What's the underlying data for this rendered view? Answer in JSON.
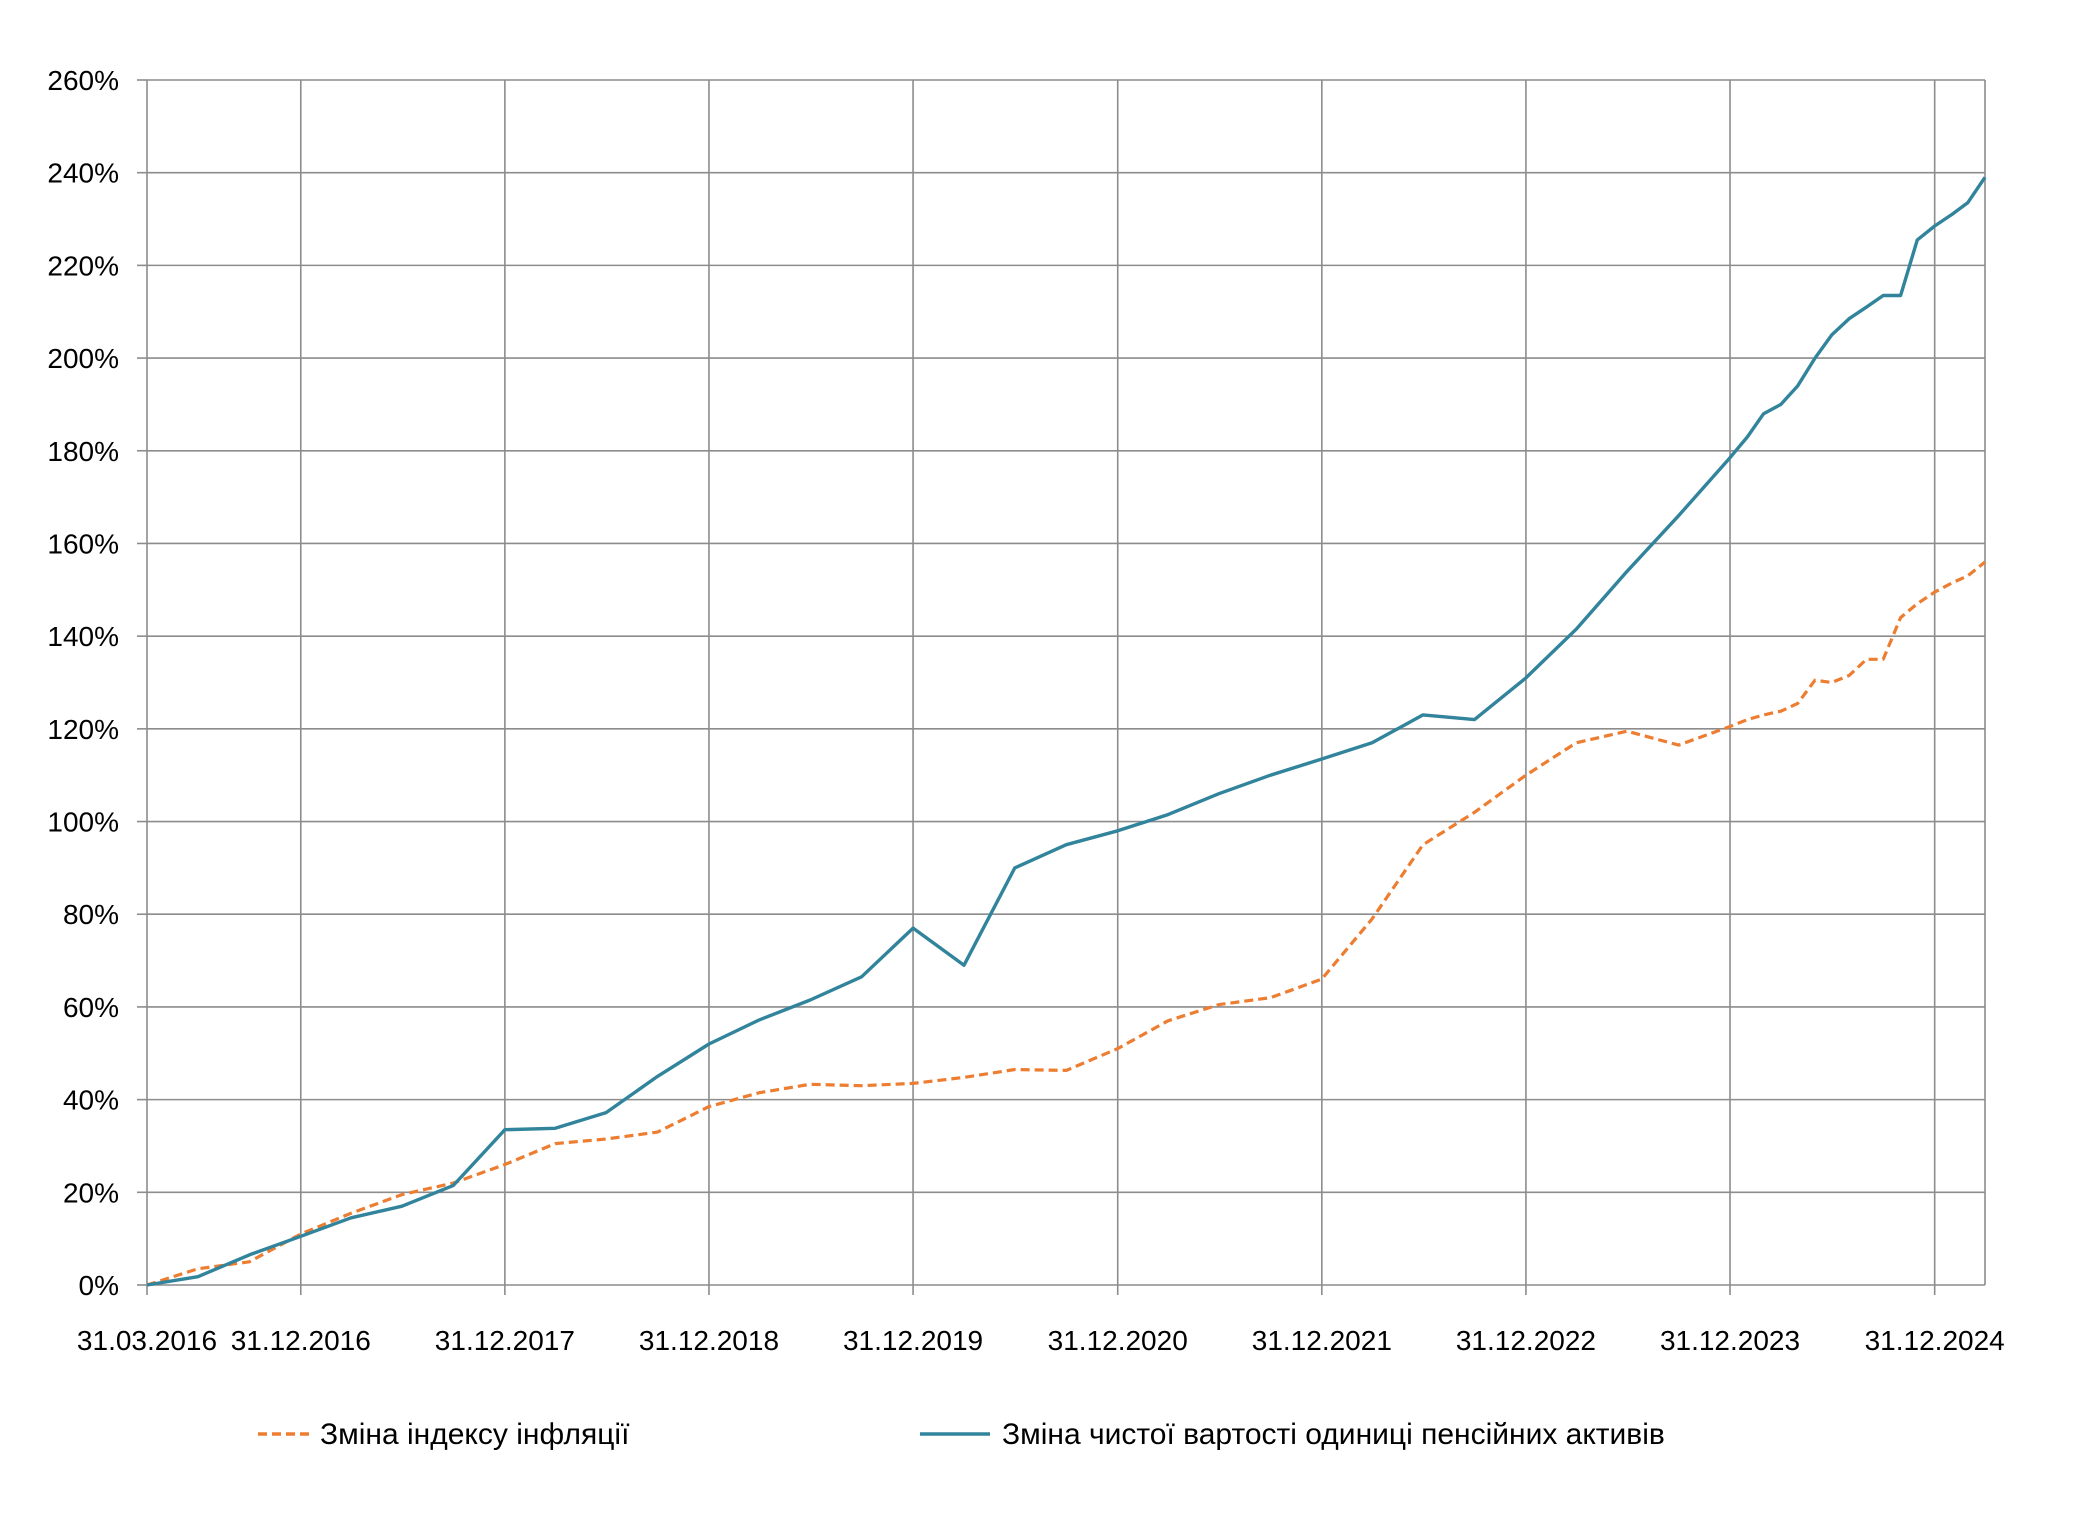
{
  "chart_data": {
    "type": "line",
    "title": "",
    "xlabel": "",
    "ylabel": "",
    "ylim": [
      0,
      260
    ],
    "yticks": [
      0,
      20,
      40,
      60,
      80,
      100,
      120,
      140,
      160,
      180,
      200,
      220,
      240,
      260
    ],
    "ytick_suffix": "%",
    "xlim": [
      "2016-03-31",
      "2025-03-31"
    ],
    "xticks": [
      "2016-03-31",
      "2016-12-31",
      "2017-12-31",
      "2018-12-31",
      "2019-12-31",
      "2020-12-31",
      "2021-12-31",
      "2022-12-31",
      "2023-12-31",
      "2024-12-31"
    ],
    "xtick_labels": [
      "31.03.2016",
      "31.12.2016",
      "31.12.2017",
      "31.12.2018",
      "31.12.2019",
      "31.12.2020",
      "31.12.2021",
      "31.12.2022",
      "31.12.2023",
      "31.12.2024"
    ],
    "grid": true,
    "legend_position": "bottom",
    "series": [
      {
        "name": "Зміна індексу інфляції",
        "color": "#ED7D31",
        "dash": "dashed",
        "x": [
          "2016-03-31",
          "2016-06-30",
          "2016-09-30",
          "2016-12-31",
          "2017-03-31",
          "2017-06-30",
          "2017-09-30",
          "2017-12-31",
          "2018-03-31",
          "2018-06-30",
          "2018-09-30",
          "2018-12-31",
          "2019-03-31",
          "2019-06-30",
          "2019-09-30",
          "2019-12-31",
          "2020-03-31",
          "2020-06-30",
          "2020-09-30",
          "2020-12-31",
          "2021-03-31",
          "2021-06-30",
          "2021-09-30",
          "2021-12-31",
          "2022-03-31",
          "2022-06-30",
          "2022-09-30",
          "2022-12-31",
          "2023-03-31",
          "2023-06-30",
          "2023-09-30",
          "2023-12-31",
          "2024-01-31",
          "2024-02-29",
          "2024-03-31",
          "2024-04-30",
          "2024-05-31",
          "2024-06-30",
          "2024-07-31",
          "2024-08-31",
          "2024-09-30",
          "2024-10-31",
          "2024-11-30",
          "2024-12-31",
          "2025-01-31",
          "2025-02-28",
          "2025-03-31"
        ],
        "values": [
          0,
          3.5,
          5,
          11,
          15.5,
          19.5,
          22,
          26,
          30.5,
          31.5,
          33,
          38.5,
          41.5,
          43.3,
          43,
          43.5,
          44.8,
          46.5,
          46.3,
          51,
          57,
          60.5,
          62,
          66,
          79,
          95,
          102,
          110,
          117,
          119.5,
          116.5,
          120.5,
          122,
          123,
          123.8,
          125.5,
          130.5,
          130,
          131.5,
          135,
          135,
          144,
          147,
          149.5,
          151.5,
          153,
          156
        ]
      },
      {
        "name": "Зміна чистої вартості одиниці пенсійних активів",
        "color": "#31849B",
        "dash": "solid",
        "x": [
          "2016-03-31",
          "2016-06-30",
          "2016-09-30",
          "2016-12-31",
          "2017-03-31",
          "2017-06-30",
          "2017-09-30",
          "2017-12-31",
          "2018-03-31",
          "2018-06-30",
          "2018-09-30",
          "2018-12-31",
          "2019-03-31",
          "2019-06-30",
          "2019-09-30",
          "2019-12-31",
          "2020-03-31",
          "2020-06-30",
          "2020-09-30",
          "2020-12-31",
          "2021-03-31",
          "2021-06-30",
          "2021-09-30",
          "2021-12-31",
          "2022-03-31",
          "2022-06-30",
          "2022-09-30",
          "2022-12-31",
          "2023-03-31",
          "2023-06-30",
          "2023-09-30",
          "2023-12-31",
          "2024-01-31",
          "2024-02-29",
          "2024-03-31",
          "2024-04-30",
          "2024-05-31",
          "2024-06-30",
          "2024-07-31",
          "2024-08-31",
          "2024-09-30",
          "2024-10-31",
          "2024-11-30",
          "2024-12-31",
          "2025-01-31",
          "2025-02-28",
          "2025-03-31"
        ],
        "values": [
          0,
          1.8,
          6.5,
          10.5,
          14.5,
          17,
          21.5,
          33.5,
          33.8,
          37.2,
          45,
          52,
          57.2,
          61.5,
          66.5,
          77,
          69,
          90,
          95,
          98,
          101.5,
          106,
          110,
          113.5,
          117,
          123,
          122,
          131,
          141.5,
          154,
          166,
          178.5,
          183,
          188,
          190,
          194,
          200,
          205,
          208.5,
          211,
          213.5,
          213.5,
          225.5,
          228.5,
          231,
          233.5,
          239
        ]
      }
    ]
  }
}
